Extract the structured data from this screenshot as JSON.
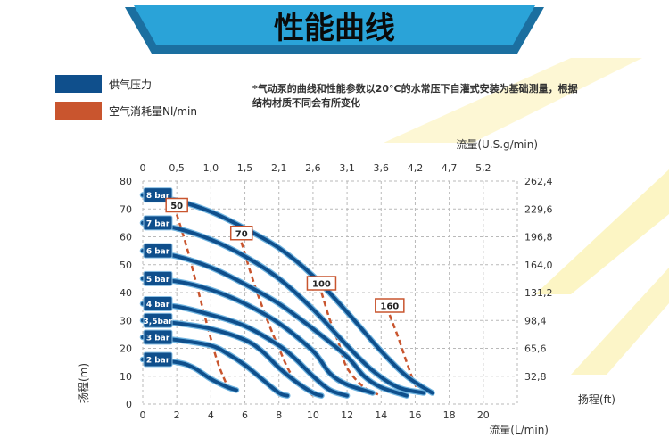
{
  "banner": {
    "title": "性能曲线",
    "color": "#2aa3d8"
  },
  "legend": {
    "items": [
      {
        "label": "供气压力",
        "color": "#0f4f8c",
        "style": "solid"
      },
      {
        "label": "空气消耗量Nl/min",
        "color": "#c9552e",
        "style": "dashed"
      }
    ]
  },
  "note": [
    "*气动泵的曲线和性能参数以20°C的水常压下自灌式安装为基础测量，根据",
    "结构材质不同会有所变化"
  ],
  "colors": {
    "curve": "#0f4f8c",
    "curve_edge": "#6fb4e0",
    "air": "#c9552e",
    "grid": "#b9b9b9",
    "label_box": "#0f4f8c",
    "deco": "#fbf1b0"
  },
  "chart_data": {
    "type": "line",
    "title": "",
    "xlabel": "流量(L/min)",
    "ylabel": "扬程(m)",
    "top_axis_label": "流量(U.S.g/min)",
    "right_axis_label": "扬程(ft)",
    "xlim": [
      0,
      22
    ],
    "ylim": [
      0,
      80
    ],
    "x_ticks": [
      "0",
      "2",
      "4",
      "6",
      "8",
      "10",
      "12",
      "14",
      "16",
      "18",
      "20"
    ],
    "y_ticks": [
      "0",
      "10",
      "20",
      "30",
      "40",
      "50",
      "60",
      "70",
      "80"
    ],
    "top_ticks": [
      "0",
      "0,5",
      "1,0",
      "1,5",
      "2,1",
      "2,6",
      "3,1",
      "3,6",
      "4,2",
      "4,7",
      "5,2"
    ],
    "right_ticks": [
      "32,8",
      "65,6",
      "98,4",
      "131,2",
      "164,0",
      "196,8",
      "229,6",
      "262,4"
    ],
    "grid": true,
    "series": [
      {
        "name": "8 bar",
        "points": [
          [
            0,
            75
          ],
          [
            2,
            73
          ],
          [
            4,
            69
          ],
          [
            6,
            63
          ],
          [
            8,
            56
          ],
          [
            10,
            46
          ],
          [
            12,
            33
          ],
          [
            14,
            19
          ],
          [
            15.5,
            10
          ],
          [
            17,
            4
          ]
        ]
      },
      {
        "name": "7 bar",
        "points": [
          [
            0,
            65
          ],
          [
            2,
            63
          ],
          [
            4,
            59
          ],
          [
            6,
            53
          ],
          [
            8,
            45
          ],
          [
            10,
            34
          ],
          [
            12,
            21
          ],
          [
            13.5,
            12
          ],
          [
            15,
            6
          ],
          [
            16.5,
            4
          ]
        ]
      },
      {
        "name": "6 bar",
        "points": [
          [
            0,
            55
          ],
          [
            2,
            53
          ],
          [
            4,
            49
          ],
          [
            6,
            43
          ],
          [
            8,
            36
          ],
          [
            10,
            27
          ],
          [
            12,
            17
          ],
          [
            13,
            10
          ],
          [
            14,
            6
          ],
          [
            15.5,
            3
          ]
        ]
      },
      {
        "name": "5 bar",
        "points": [
          [
            0,
            45
          ],
          [
            2,
            44
          ],
          [
            4,
            41
          ],
          [
            6,
            36
          ],
          [
            8,
            29
          ],
          [
            10,
            19
          ],
          [
            11,
            11
          ],
          [
            12,
            7
          ],
          [
            13.5,
            4
          ]
        ]
      },
      {
        "name": "4 bar",
        "points": [
          [
            0,
            36
          ],
          [
            2,
            35
          ],
          [
            4,
            32
          ],
          [
            6,
            28
          ],
          [
            8,
            21
          ],
          [
            9,
            16
          ],
          [
            10,
            10
          ],
          [
            11,
            5
          ],
          [
            12,
            3
          ]
        ]
      },
      {
        "name": "3,5bar",
        "points": [
          [
            0,
            30
          ],
          [
            2,
            29
          ],
          [
            4,
            27
          ],
          [
            6,
            23
          ],
          [
            7,
            19
          ],
          [
            8,
            13
          ],
          [
            9,
            8
          ],
          [
            10,
            4
          ],
          [
            10.5,
            3
          ]
        ]
      },
      {
        "name": "3 bar",
        "points": [
          [
            0,
            24
          ],
          [
            2,
            23
          ],
          [
            4,
            21
          ],
          [
            5,
            18
          ],
          [
            6,
            14
          ],
          [
            7,
            9
          ],
          [
            8,
            4
          ],
          [
            8.5,
            3
          ]
        ]
      },
      {
        "name": "2 bar",
        "points": [
          [
            0,
            16
          ],
          [
            2,
            15
          ],
          [
            3,
            13
          ],
          [
            4,
            9
          ],
          [
            5,
            6
          ],
          [
            5.5,
            5
          ]
        ]
      }
    ],
    "air_consumption": [
      {
        "label": "50",
        "points": [
          [
            2,
            68
          ],
          [
            2.6,
            56
          ],
          [
            3.2,
            42
          ],
          [
            3.8,
            28
          ],
          [
            4.4,
            15
          ],
          [
            5,
            6
          ]
        ]
      },
      {
        "label": "70",
        "points": [
          [
            5.8,
            58
          ],
          [
            6.5,
            44
          ],
          [
            7.2,
            32
          ],
          [
            8,
            20
          ],
          [
            8.8,
            10
          ],
          [
            10,
            3
          ]
        ]
      },
      {
        "label": "100",
        "points": [
          [
            10.5,
            40
          ],
          [
            11,
            30
          ],
          [
            11.5,
            22
          ],
          [
            12,
            13
          ],
          [
            13,
            6
          ],
          [
            14,
            3
          ]
        ]
      },
      {
        "label": "160",
        "points": [
          [
            14.5,
            32
          ],
          [
            15,
            24
          ],
          [
            15.5,
            15
          ],
          [
            16,
            7
          ],
          [
            16.5,
            3
          ]
        ]
      }
    ]
  }
}
